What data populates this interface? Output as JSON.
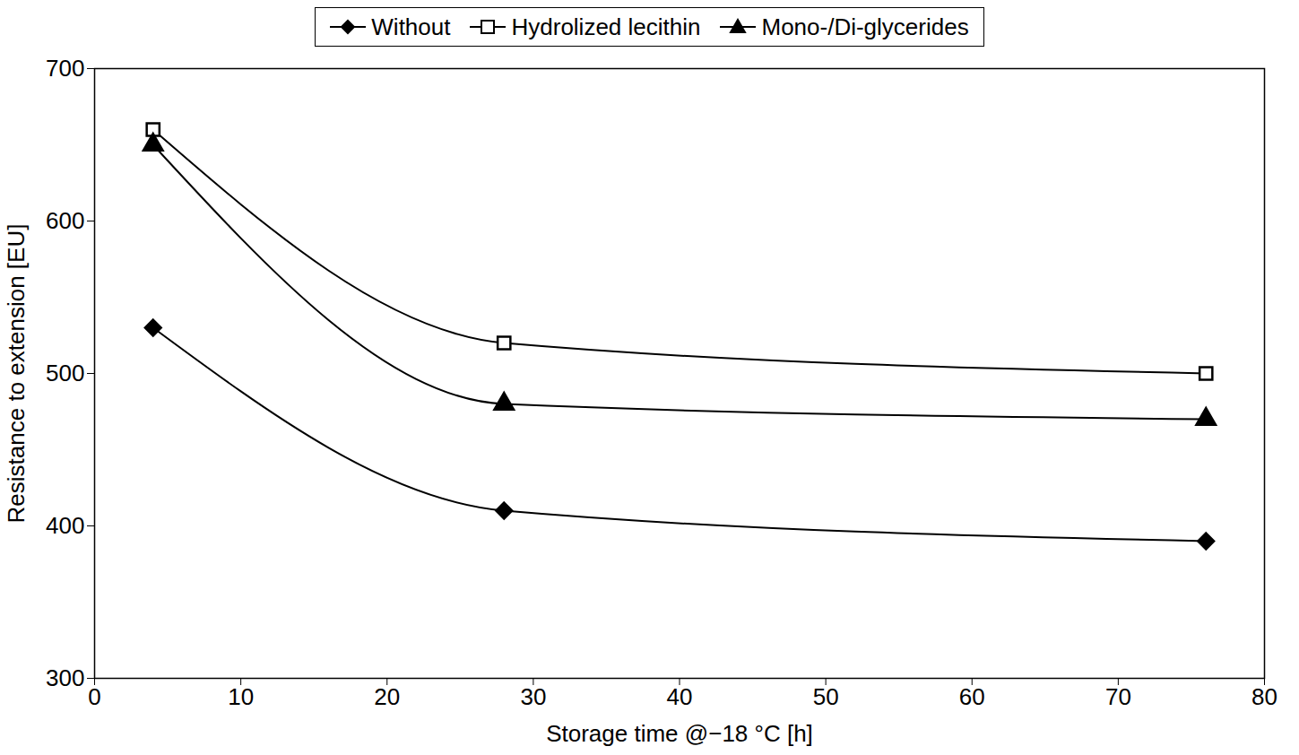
{
  "chart_data": {
    "type": "line",
    "x_label": "Storage time @−18 °C [h]",
    "y_label": "Resistance to extension [EU]",
    "x": [
      4,
      28,
      76
    ],
    "series": [
      {
        "name": "Without",
        "color": "#000000",
        "marker": "diamond",
        "values": [
          530,
          410,
          390
        ]
      },
      {
        "name": "Hydrolized lecithin",
        "color": "#000000",
        "marker": "open-square",
        "values": [
          660,
          520,
          500
        ]
      },
      {
        "name": "Mono-/Di-glycerides",
        "color": "#000000",
        "marker": "triangle",
        "values": [
          650,
          480,
          470
        ]
      }
    ],
    "xlim": [
      0,
      80
    ],
    "xticks": [
      0,
      10,
      20,
      30,
      40,
      50,
      60,
      70,
      80
    ],
    "ylim": [
      300,
      700
    ],
    "yticks": [
      300,
      400,
      500,
      600,
      700
    ],
    "grid": false,
    "legend": "top"
  }
}
